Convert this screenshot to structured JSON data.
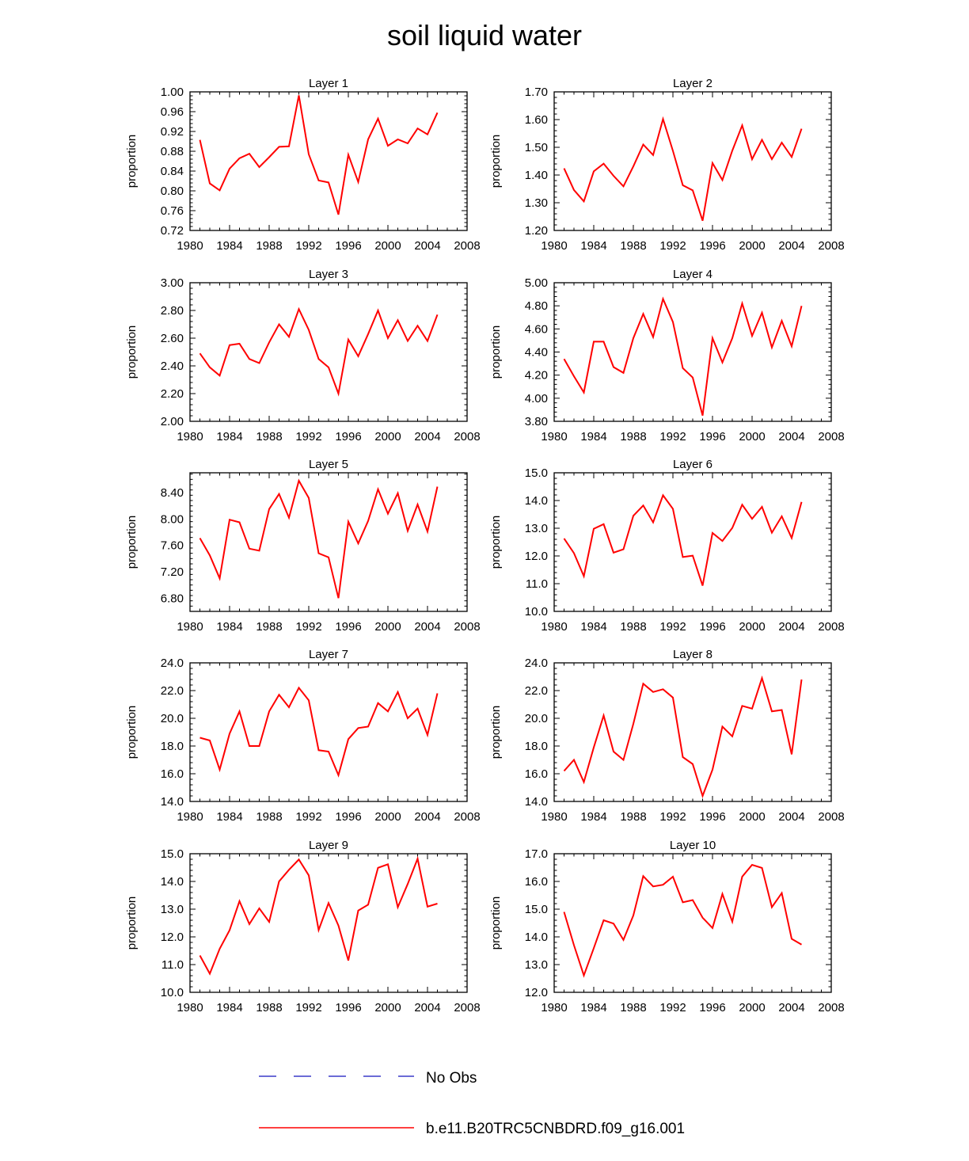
{
  "figure": {
    "title": "soil liquid water",
    "ylabel": "proportion",
    "legend": [
      {
        "label": "No Obs",
        "style": "dashed",
        "color": "#3c3cc8"
      },
      {
        "label": "b.e11.B20TRC5CNBDRD.f09_g16.001",
        "style": "solid",
        "color": "#ff0000"
      }
    ]
  },
  "chart_data": [
    {
      "type": "line",
      "title": "Layer 1",
      "xlabel": "",
      "ylabel": "proportion",
      "xlim": [
        1980,
        2008
      ],
      "ylim": [
        0.72,
        1.0
      ],
      "xticks": [
        "1980",
        "1984",
        "1988",
        "1992",
        "1996",
        "2000",
        "2004",
        "2008"
      ],
      "yticks": [
        "0.72",
        "0.76",
        "0.80",
        "0.84",
        "0.88",
        "0.92",
        "0.96",
        "1.00"
      ],
      "x": [
        1981,
        1982,
        1983,
        1984,
        1985,
        1986,
        1987,
        1988,
        1989,
        1990,
        1991,
        1992,
        1993,
        1994,
        1995,
        1996,
        1997,
        1998,
        1999,
        2000,
        2001,
        2002,
        2003,
        2004,
        2005
      ],
      "series": [
        {
          "values": [
            0.903,
            0.815,
            0.801,
            0.845,
            0.866,
            0.875,
            0.848,
            0.868,
            0.889,
            0.89,
            0.993,
            0.874,
            0.821,
            0.817,
            0.752,
            0.873,
            0.818,
            0.904,
            0.946,
            0.891,
            0.904,
            0.896,
            0.926,
            0.914,
            0.958
          ],
          "color": "#ff0000"
        }
      ]
    },
    {
      "type": "line",
      "title": "Layer 2",
      "xlabel": "",
      "ylabel": "proportion",
      "xlim": [
        1980,
        2008
      ],
      "ylim": [
        1.2,
        1.7
      ],
      "xticks": [
        "1980",
        "1984",
        "1988",
        "1992",
        "1996",
        "2000",
        "2004",
        "2008"
      ],
      "yticks": [
        "1.20",
        "1.30",
        "1.40",
        "1.50",
        "1.60",
        "1.70"
      ],
      "x": [
        1981,
        1982,
        1983,
        1984,
        1985,
        1986,
        1987,
        1988,
        1989,
        1990,
        1991,
        1992,
        1993,
        1994,
        1995,
        1996,
        1997,
        1998,
        1999,
        2000,
        2001,
        2002,
        2003,
        2004,
        2005
      ],
      "series": [
        {
          "values": [
            1.424,
            1.346,
            1.305,
            1.413,
            1.441,
            1.397,
            1.359,
            1.431,
            1.51,
            1.472,
            1.602,
            1.487,
            1.363,
            1.345,
            1.235,
            1.443,
            1.382,
            1.488,
            1.579,
            1.457,
            1.527,
            1.457,
            1.517,
            1.465,
            1.567
          ],
          "color": "#ff0000"
        }
      ]
    },
    {
      "type": "line",
      "title": "Layer 3",
      "xlabel": "",
      "ylabel": "proportion",
      "xlim": [
        1980,
        2008
      ],
      "ylim": [
        2.0,
        3.0
      ],
      "xticks": [
        "1980",
        "1984",
        "1988",
        "1992",
        "1996",
        "2000",
        "2004",
        "2008"
      ],
      "yticks": [
        "2.00",
        "2.20",
        "2.40",
        "2.60",
        "2.80",
        "3.00"
      ],
      "x": [
        1981,
        1982,
        1983,
        1984,
        1985,
        1986,
        1987,
        1988,
        1989,
        1990,
        1991,
        1992,
        1993,
        1994,
        1995,
        1996,
        1997,
        1998,
        1999,
        2000,
        2001,
        2002,
        2003,
        2004,
        2005
      ],
      "series": [
        {
          "values": [
            2.49,
            2.39,
            2.33,
            2.55,
            2.56,
            2.45,
            2.42,
            2.57,
            2.7,
            2.61,
            2.81,
            2.66,
            2.45,
            2.39,
            2.2,
            2.59,
            2.47,
            2.63,
            2.8,
            2.6,
            2.73,
            2.58,
            2.69,
            2.58,
            2.77
          ],
          "color": "#ff0000"
        }
      ]
    },
    {
      "type": "line",
      "title": "Layer 4",
      "xlabel": "",
      "ylabel": "proportion",
      "xlim": [
        1980,
        2008
      ],
      "ylim": [
        3.8,
        5.0
      ],
      "xticks": [
        "1980",
        "1984",
        "1988",
        "1992",
        "1996",
        "2000",
        "2004",
        "2008"
      ],
      "yticks": [
        "3.80",
        "4.00",
        "4.20",
        "4.40",
        "4.60",
        "4.80",
        "5.00"
      ],
      "x": [
        1981,
        1982,
        1983,
        1984,
        1985,
        1986,
        1987,
        1988,
        1989,
        1990,
        1991,
        1992,
        1993,
        1994,
        1995,
        1996,
        1997,
        1998,
        1999,
        2000,
        2001,
        2002,
        2003,
        2004,
        2005
      ],
      "series": [
        {
          "values": [
            4.34,
            4.19,
            4.05,
            4.49,
            4.49,
            4.27,
            4.22,
            4.52,
            4.73,
            4.53,
            4.86,
            4.66,
            4.26,
            4.18,
            3.85,
            4.52,
            4.31,
            4.52,
            4.82,
            4.54,
            4.74,
            4.44,
            4.67,
            4.45,
            4.8
          ],
          "color": "#ff0000"
        }
      ]
    },
    {
      "type": "line",
      "title": "Layer 5",
      "xlabel": "",
      "ylabel": "proportion",
      "xlim": [
        1980,
        2008
      ],
      "ylim": [
        6.6,
        8.7
      ],
      "xticks": [
        "1980",
        "1984",
        "1988",
        "1992",
        "1996",
        "2000",
        "2004",
        "2008"
      ],
      "yticks": [
        "6.80",
        "7.20",
        "7.60",
        "8.00",
        "8.40"
      ],
      "x": [
        1981,
        1982,
        1983,
        1984,
        1985,
        1986,
        1987,
        1988,
        1989,
        1990,
        1991,
        1992,
        1993,
        1994,
        1995,
        1996,
        1997,
        1998,
        1999,
        2000,
        2001,
        2002,
        2003,
        2004,
        2005
      ],
      "series": [
        {
          "values": [
            7.71,
            7.45,
            7.1,
            7.99,
            7.95,
            7.55,
            7.52,
            8.15,
            8.38,
            8.02,
            8.58,
            8.32,
            7.48,
            7.42,
            6.8,
            7.96,
            7.63,
            7.97,
            8.45,
            8.08,
            8.39,
            7.82,
            8.22,
            7.81,
            8.49
          ],
          "color": "#ff0000"
        }
      ]
    },
    {
      "type": "line",
      "title": "Layer 6",
      "xlabel": "",
      "ylabel": "proportion",
      "xlim": [
        1980,
        2008
      ],
      "ylim": [
        10.0,
        15.0
      ],
      "xticks": [
        "1980",
        "1984",
        "1988",
        "1992",
        "1996",
        "2000",
        "2004",
        "2008"
      ],
      "yticks": [
        "10.0",
        "11.0",
        "12.0",
        "13.0",
        "14.0",
        "15.0"
      ],
      "x": [
        1981,
        1982,
        1983,
        1984,
        1985,
        1986,
        1987,
        1988,
        1989,
        1990,
        1991,
        1992,
        1993,
        1994,
        1995,
        1996,
        1997,
        1998,
        1999,
        2000,
        2001,
        2002,
        2003,
        2004,
        2005
      ],
      "series": [
        {
          "values": [
            12.63,
            12.1,
            11.27,
            12.98,
            13.15,
            12.12,
            12.24,
            13.45,
            13.82,
            13.21,
            14.19,
            13.7,
            11.96,
            12.01,
            10.93,
            12.83,
            12.54,
            13.01,
            13.85,
            13.34,
            13.77,
            12.84,
            13.43,
            12.65,
            13.95
          ],
          "color": "#ff0000"
        }
      ]
    },
    {
      "type": "line",
      "title": "Layer 7",
      "xlabel": "",
      "ylabel": "proportion",
      "xlim": [
        1980,
        2008
      ],
      "ylim": [
        14.0,
        24.0
      ],
      "xticks": [
        "1980",
        "1984",
        "1988",
        "1992",
        "1996",
        "2000",
        "2004",
        "2008"
      ],
      "yticks": [
        "14.0",
        "16.0",
        "18.0",
        "20.0",
        "22.0",
        "24.0"
      ],
      "x": [
        1981,
        1982,
        1983,
        1984,
        1985,
        1986,
        1987,
        1988,
        1989,
        1990,
        1991,
        1992,
        1993,
        1994,
        1995,
        1996,
        1997,
        1998,
        1999,
        2000,
        2001,
        2002,
        2003,
        2004,
        2005
      ],
      "series": [
        {
          "values": [
            18.6,
            18.4,
            16.3,
            18.9,
            20.5,
            18.0,
            18.0,
            20.5,
            21.7,
            20.8,
            22.2,
            21.3,
            17.7,
            17.6,
            15.9,
            18.5,
            19.3,
            19.4,
            21.1,
            20.5,
            21.9,
            20.0,
            20.7,
            18.8,
            21.8
          ],
          "color": "#ff0000"
        }
      ]
    },
    {
      "type": "line",
      "title": "Layer 8",
      "xlabel": "",
      "ylabel": "proportion",
      "xlim": [
        1980,
        2008
      ],
      "ylim": [
        14.0,
        24.0
      ],
      "xticks": [
        "1980",
        "1984",
        "1988",
        "1992",
        "1996",
        "2000",
        "2004",
        "2008"
      ],
      "yticks": [
        "14.0",
        "16.0",
        "18.0",
        "20.0",
        "22.0",
        "24.0"
      ],
      "x": [
        1981,
        1982,
        1983,
        1984,
        1985,
        1986,
        1987,
        1988,
        1989,
        1990,
        1991,
        1992,
        1993,
        1994,
        1995,
        1996,
        1997,
        1998,
        1999,
        2000,
        2001,
        2002,
        2003,
        2004,
        2005
      ],
      "series": [
        {
          "values": [
            16.2,
            17.0,
            15.4,
            17.9,
            20.2,
            17.6,
            17.0,
            19.6,
            22.5,
            21.9,
            22.1,
            21.5,
            17.2,
            16.7,
            14.4,
            16.3,
            19.4,
            18.7,
            20.9,
            20.7,
            22.9,
            20.5,
            20.6,
            17.4,
            22.8
          ],
          "color": "#ff0000"
        }
      ]
    },
    {
      "type": "line",
      "title": "Layer 9",
      "xlabel": "",
      "ylabel": "proportion",
      "xlim": [
        1980,
        2008
      ],
      "ylim": [
        10.0,
        15.0
      ],
      "xticks": [
        "1980",
        "1984",
        "1988",
        "1992",
        "1996",
        "2000",
        "2004",
        "2008"
      ],
      "yticks": [
        "10.0",
        "11.0",
        "12.0",
        "13.0",
        "14.0",
        "15.0"
      ],
      "x": [
        1981,
        1982,
        1983,
        1984,
        1985,
        1986,
        1987,
        1988,
        1989,
        1990,
        1991,
        1992,
        1993,
        1994,
        1995,
        1996,
        1997,
        1998,
        1999,
        2000,
        2001,
        2002,
        2003,
        2004,
        2005
      ],
      "series": [
        {
          "values": [
            11.33,
            10.67,
            11.57,
            12.24,
            13.29,
            12.46,
            13.03,
            12.54,
            14.0,
            14.42,
            14.79,
            14.22,
            12.25,
            13.22,
            12.41,
            11.15,
            12.95,
            13.16,
            14.49,
            14.62,
            13.07,
            13.91,
            14.82,
            13.09,
            13.2
          ],
          "color": "#ff0000"
        }
      ]
    },
    {
      "type": "line",
      "title": "Layer 10",
      "xlabel": "",
      "ylabel": "proportion",
      "xlim": [
        1980,
        2008
      ],
      "ylim": [
        12.0,
        17.0
      ],
      "xticks": [
        "1980",
        "1984",
        "1988",
        "1992",
        "1996",
        "2000",
        "2004",
        "2008"
      ],
      "yticks": [
        "12.0",
        "13.0",
        "14.0",
        "15.0",
        "16.0",
        "17.0"
      ],
      "x": [
        1981,
        1982,
        1983,
        1984,
        1985,
        1986,
        1987,
        1988,
        1989,
        1990,
        1991,
        1992,
        1993,
        1994,
        1995,
        1996,
        1997,
        1998,
        1999,
        2000,
        2001,
        2002,
        2003,
        2004,
        2005
      ],
      "series": [
        {
          "values": [
            14.9,
            13.7,
            12.61,
            13.59,
            14.6,
            14.48,
            13.89,
            14.77,
            16.19,
            15.82,
            15.88,
            16.17,
            15.25,
            15.33,
            14.69,
            14.32,
            15.55,
            14.55,
            16.17,
            16.6,
            16.49,
            15.07,
            15.58,
            13.93,
            13.72
          ],
          "color": "#ff0000"
        }
      ]
    }
  ]
}
